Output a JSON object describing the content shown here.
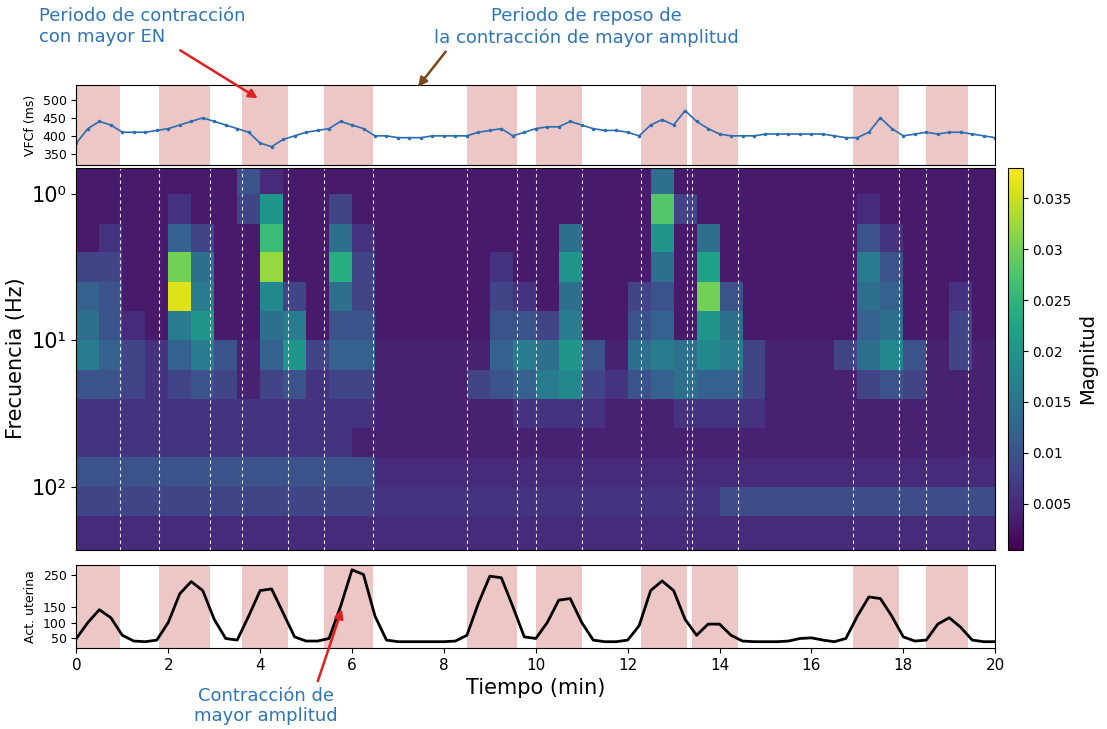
{
  "chart_data": [
    {
      "type": "line",
      "y_label": "VFCf (ms)",
      "x": [
        0,
        0.25,
        0.5,
        0.75,
        1,
        1.25,
        1.5,
        1.75,
        2,
        2.25,
        2.5,
        2.75,
        3,
        3.25,
        3.5,
        3.75,
        4,
        4.25,
        4.5,
        4.75,
        5,
        5.25,
        5.5,
        5.75,
        6,
        6.25,
        6.5,
        6.75,
        7,
        7.25,
        7.5,
        7.75,
        8,
        8.25,
        8.5,
        8.75,
        9,
        9.25,
        9.5,
        9.75,
        10,
        10.25,
        10.5,
        10.75,
        11,
        11.25,
        11.5,
        11.75,
        12,
        12.25,
        12.5,
        12.75,
        13,
        13.25,
        13.5,
        13.75,
        14,
        14.25,
        14.5,
        14.75,
        15,
        15.25,
        15.5,
        15.75,
        16,
        16.25,
        16.5,
        16.75,
        17,
        17.25,
        17.5,
        17.75,
        18,
        18.25,
        18.5,
        18.75,
        19,
        19.25,
        19.5,
        19.75,
        20
      ],
      "values": [
        380,
        420,
        440,
        430,
        410,
        410,
        410,
        415,
        420,
        430,
        440,
        450,
        440,
        430,
        420,
        410,
        380,
        370,
        390,
        400,
        410,
        415,
        420,
        440,
        430,
        420,
        400,
        400,
        395,
        395,
        395,
        400,
        400,
        400,
        400,
        410,
        415,
        420,
        400,
        410,
        420,
        425,
        425,
        440,
        430,
        420,
        415,
        415,
        410,
        400,
        430,
        445,
        430,
        470,
        440,
        420,
        405,
        400,
        400,
        400,
        405,
        405,
        405,
        405,
        405,
        405,
        400,
        395,
        395,
        410,
        450,
        420,
        400,
        405,
        410,
        405,
        410,
        410,
        405,
        400,
        395
      ],
      "color": "#2a6db0",
      "marker": "point",
      "line_style": "solid",
      "xlim": [
        0,
        20
      ],
      "ylim": [
        320,
        540
      ],
      "yticks": [
        350,
        400,
        450,
        500
      ],
      "tick_labels": "y",
      "contraction_periods": [
        [
          0,
          0.95
        ],
        [
          1.8,
          2.9
        ],
        [
          3.6,
          4.6
        ],
        [
          5.4,
          6.45
        ],
        [
          8.5,
          9.6
        ],
        [
          10,
          11
        ],
        [
          12.3,
          13.3
        ],
        [
          13.4,
          14.4
        ],
        [
          16.9,
          17.9
        ],
        [
          18.5,
          19.4
        ]
      ]
    },
    {
      "type": "heatmap",
      "y_label": "Frecuencia (Hz)",
      "log": "y",
      "xlim": [
        0,
        20
      ],
      "ylim": [
        270,
        0.66
      ],
      "yticks": [
        {
          "value": 1,
          "label": "10⁰"
        },
        {
          "value": 10,
          "label": "10¹"
        },
        {
          "value": 100,
          "label": "10²"
        }
      ],
      "tick_labels": "y",
      "x_edges": [
        0,
        0.5,
        1,
        1.5,
        2,
        2.5,
        3,
        3.5,
        4,
        4.5,
        5,
        5.5,
        6,
        6.5,
        7,
        7.5,
        8,
        8.5,
        9,
        9.5,
        10,
        10.5,
        11,
        11.5,
        12,
        12.5,
        13,
        13.5,
        14,
        14.5,
        15,
        15.5,
        16,
        16.5,
        17,
        17.5,
        18,
        18.5,
        19,
        19.5,
        20
      ],
      "y_edges": [
        0.66,
        1,
        1.6,
        2.5,
        4,
        6.3,
        10,
        16,
        25,
        40,
        63,
        100,
        160,
        270
      ],
      "cells": [
        [
          0.003,
          0.003,
          0.003,
          0.003,
          0.003,
          0.003,
          0.003,
          0.01,
          0.005,
          0.003,
          0.003,
          0.003,
          0.003,
          0.003,
          0.003,
          0.003,
          0.003,
          0.003,
          0.003,
          0.003,
          0.003,
          0.003,
          0.003,
          0.003,
          0.003,
          0.014,
          0.003,
          0.003,
          0.003,
          0.003,
          0.003,
          0.003,
          0.003,
          0.003,
          0.003,
          0.003,
          0.003,
          0.003,
          0.003,
          0.003
        ],
        [
          0.003,
          0.003,
          0.003,
          0.003,
          0.006,
          0.003,
          0.003,
          0.008,
          0.02,
          0.003,
          0.003,
          0.008,
          0.003,
          0.003,
          0.003,
          0.003,
          0.003,
          0.003,
          0.003,
          0.003,
          0.003,
          0.003,
          0.003,
          0.003,
          0.003,
          0.028,
          0.008,
          0.003,
          0.003,
          0.003,
          0.003,
          0.003,
          0.003,
          0.003,
          0.005,
          0.003,
          0.003,
          0.003,
          0.003,
          0.003
        ],
        [
          0.003,
          0.006,
          0.003,
          0.003,
          0.012,
          0.008,
          0.003,
          0.003,
          0.026,
          0.003,
          0.003,
          0.014,
          0.006,
          0.003,
          0.003,
          0.003,
          0.003,
          0.003,
          0.003,
          0.003,
          0.003,
          0.014,
          0.003,
          0.003,
          0.003,
          0.02,
          0.003,
          0.014,
          0.003,
          0.003,
          0.003,
          0.003,
          0.003,
          0.003,
          0.01,
          0.006,
          0.003,
          0.003,
          0.003,
          0.003
        ],
        [
          0.008,
          0.008,
          0.003,
          0.003,
          0.03,
          0.014,
          0.003,
          0.003,
          0.032,
          0.003,
          0.003,
          0.024,
          0.008,
          0.003,
          0.003,
          0.003,
          0.003,
          0.003,
          0.006,
          0.003,
          0.003,
          0.02,
          0.003,
          0.003,
          0.003,
          0.014,
          0.003,
          0.022,
          0.003,
          0.003,
          0.003,
          0.003,
          0.003,
          0.003,
          0.016,
          0.01,
          0.003,
          0.003,
          0.003,
          0.003
        ],
        [
          0.012,
          0.01,
          0.003,
          0.003,
          0.036,
          0.016,
          0.003,
          0.003,
          0.018,
          0.008,
          0.003,
          0.014,
          0.008,
          0.003,
          0.003,
          0.003,
          0.003,
          0.003,
          0.008,
          0.006,
          0.003,
          0.014,
          0.003,
          0.003,
          0.008,
          0.01,
          0.003,
          0.03,
          0.01,
          0.003,
          0.003,
          0.003,
          0.003,
          0.003,
          0.014,
          0.012,
          0.003,
          0.003,
          0.006,
          0.003
        ],
        [
          0.014,
          0.01,
          0.005,
          0.003,
          0.016,
          0.02,
          0.003,
          0.003,
          0.014,
          0.016,
          0.003,
          0.01,
          0.01,
          0.003,
          0.003,
          0.003,
          0.003,
          0.003,
          0.01,
          0.01,
          0.008,
          0.016,
          0.003,
          0.003,
          0.01,
          0.012,
          0.003,
          0.02,
          0.014,
          0.003,
          0.003,
          0.003,
          0.003,
          0.003,
          0.012,
          0.014,
          0.003,
          0.003,
          0.008,
          0.003
        ],
        [
          0.016,
          0.012,
          0.008,
          0.006,
          0.012,
          0.016,
          0.01,
          0.004,
          0.012,
          0.02,
          0.008,
          0.012,
          0.012,
          0.004,
          0.004,
          0.004,
          0.004,
          0.004,
          0.012,
          0.016,
          0.014,
          0.02,
          0.01,
          0.004,
          0.014,
          0.016,
          0.014,
          0.018,
          0.016,
          0.008,
          0.004,
          0.004,
          0.004,
          0.008,
          0.014,
          0.018,
          0.01,
          0.004,
          0.008,
          0.004
        ],
        [
          0.01,
          0.01,
          0.008,
          0.006,
          0.008,
          0.01,
          0.008,
          0.004,
          0.008,
          0.01,
          0.006,
          0.008,
          0.008,
          0.004,
          0.004,
          0.004,
          0.004,
          0.008,
          0.01,
          0.012,
          0.016,
          0.018,
          0.008,
          0.006,
          0.01,
          0.012,
          0.014,
          0.012,
          0.012,
          0.008,
          0.004,
          0.004,
          0.004,
          0.004,
          0.008,
          0.01,
          0.008,
          0.004,
          0.004,
          0.004
        ],
        [
          0.006,
          0.006,
          0.006,
          0.006,
          0.006,
          0.006,
          0.006,
          0.006,
          0.006,
          0.006,
          0.006,
          0.006,
          0.006,
          0.004,
          0.004,
          0.004,
          0.004,
          0.004,
          0.004,
          0.006,
          0.006,
          0.006,
          0.006,
          0.004,
          0.004,
          0.004,
          0.006,
          0.006,
          0.006,
          0.006,
          0.004,
          0.004,
          0.004,
          0.004,
          0.004,
          0.004,
          0.004,
          0.004,
          0.004,
          0.004
        ],
        [
          0.006,
          0.006,
          0.006,
          0.006,
          0.006,
          0.006,
          0.006,
          0.006,
          0.006,
          0.006,
          0.006,
          0.006,
          0.004,
          0.004,
          0.004,
          0.004,
          0.004,
          0.004,
          0.004,
          0.004,
          0.004,
          0.004,
          0.004,
          0.004,
          0.004,
          0.004,
          0.004,
          0.004,
          0.004,
          0.004,
          0.004,
          0.004,
          0.004,
          0.004,
          0.004,
          0.004,
          0.004,
          0.004,
          0.004,
          0.004
        ],
        [
          0.01,
          0.01,
          0.01,
          0.01,
          0.01,
          0.01,
          0.01,
          0.01,
          0.01,
          0.01,
          0.01,
          0.01,
          0.01,
          0.005,
          0.005,
          0.005,
          0.005,
          0.005,
          0.005,
          0.005,
          0.005,
          0.005,
          0.005,
          0.005,
          0.005,
          0.005,
          0.005,
          0.005,
          0.005,
          0.005,
          0.005,
          0.005,
          0.005,
          0.005,
          0.005,
          0.005,
          0.005,
          0.005,
          0.005,
          0.005
        ],
        [
          0.008,
          0.008,
          0.008,
          0.008,
          0.008,
          0.008,
          0.008,
          0.008,
          0.008,
          0.008,
          0.008,
          0.008,
          0.008,
          0.006,
          0.006,
          0.006,
          0.006,
          0.006,
          0.006,
          0.006,
          0.006,
          0.006,
          0.006,
          0.006,
          0.006,
          0.006,
          0.006,
          0.006,
          0.009,
          0.009,
          0.009,
          0.009,
          0.009,
          0.009,
          0.009,
          0.009,
          0.009,
          0.009,
          0.009,
          0.009
        ],
        [
          0.005,
          0.005,
          0.005,
          0.005,
          0.005,
          0.005,
          0.005,
          0.005,
          0.005,
          0.005,
          0.005,
          0.005,
          0.005,
          0.005,
          0.005,
          0.005,
          0.005,
          0.005,
          0.005,
          0.005,
          0.005,
          0.005,
          0.005,
          0.005,
          0.005,
          0.005,
          0.005,
          0.005,
          0.005,
          0.005,
          0.005,
          0.005,
          0.005,
          0.005,
          0.005,
          0.005,
          0.005,
          0.005,
          0.005,
          0.005
        ]
      ],
      "colorbar": {
        "label": "Magnitud",
        "range": [
          0.0005,
          0.038
        ],
        "ticks": [
          0.005,
          0.01,
          0.015,
          0.02,
          0.025,
          0.03,
          0.035
        ]
      }
    },
    {
      "type": "line",
      "y_label": "Act. uterina",
      "x_label": "Tiempo (min)",
      "x": [
        0,
        0.25,
        0.5,
        0.75,
        1,
        1.25,
        1.5,
        1.75,
        2,
        2.25,
        2.5,
        2.75,
        3,
        3.25,
        3.5,
        3.75,
        4,
        4.25,
        4.5,
        4.75,
        5,
        5.25,
        5.5,
        5.75,
        6,
        6.25,
        6.5,
        6.75,
        7,
        7.25,
        7.5,
        7.75,
        8,
        8.25,
        8.5,
        8.75,
        9,
        9.25,
        9.5,
        9.75,
        10,
        10.25,
        10.5,
        10.75,
        11,
        11.25,
        11.5,
        11.75,
        12,
        12.25,
        12.5,
        12.75,
        13,
        13.25,
        13.5,
        13.75,
        14,
        14.25,
        14.5,
        14.75,
        15,
        15.25,
        15.5,
        15.75,
        16,
        16.25,
        16.5,
        16.75,
        17,
        17.25,
        17.5,
        17.75,
        18,
        18.25,
        18.5,
        18.75,
        19,
        19.25,
        19.5,
        19.75,
        20
      ],
      "values": [
        50,
        100,
        140,
        115,
        60,
        42,
        40,
        45,
        100,
        190,
        228,
        200,
        110,
        50,
        45,
        120,
        200,
        205,
        130,
        55,
        42,
        42,
        50,
        150,
        265,
        250,
        120,
        45,
        40,
        40,
        40,
        40,
        40,
        42,
        60,
        160,
        245,
        240,
        150,
        55,
        50,
        100,
        170,
        175,
        100,
        45,
        40,
        40,
        45,
        90,
        200,
        230,
        200,
        110,
        60,
        95,
        95,
        60,
        42,
        40,
        40,
        40,
        42,
        50,
        52,
        45,
        40,
        50,
        120,
        180,
        175,
        120,
        55,
        42,
        45,
        95,
        115,
        85,
        45,
        40,
        40
      ],
      "color": "#000000",
      "line_style": "solid",
      "xlim": [
        0,
        20
      ],
      "xticks": [
        0,
        2,
        4,
        6,
        8,
        10,
        12,
        14,
        16,
        18,
        20
      ],
      "ylim": [
        20,
        280
      ],
      "yticks": [
        50,
        100,
        150,
        250
      ],
      "contraction_periods": [
        [
          0,
          0.95
        ],
        [
          1.8,
          2.9
        ],
        [
          3.6,
          4.6
        ],
        [
          5.4,
          6.45
        ],
        [
          8.5,
          9.6
        ],
        [
          10,
          11
        ],
        [
          12.3,
          13.3
        ],
        [
          13.4,
          14.4
        ],
        [
          16.9,
          17.9
        ],
        [
          18.5,
          19.4
        ]
      ]
    }
  ],
  "annotations": [
    {
      "text": "Periodo de contracción\ncon mayor EN",
      "color": "#2e75b6"
    },
    {
      "text": "Periodo de reposo de\nla contracción de mayor amplitud",
      "color": "#2e75b6"
    },
    {
      "text": "Contracción de\nmayor amplitud",
      "color": "#2e75b6"
    }
  ]
}
